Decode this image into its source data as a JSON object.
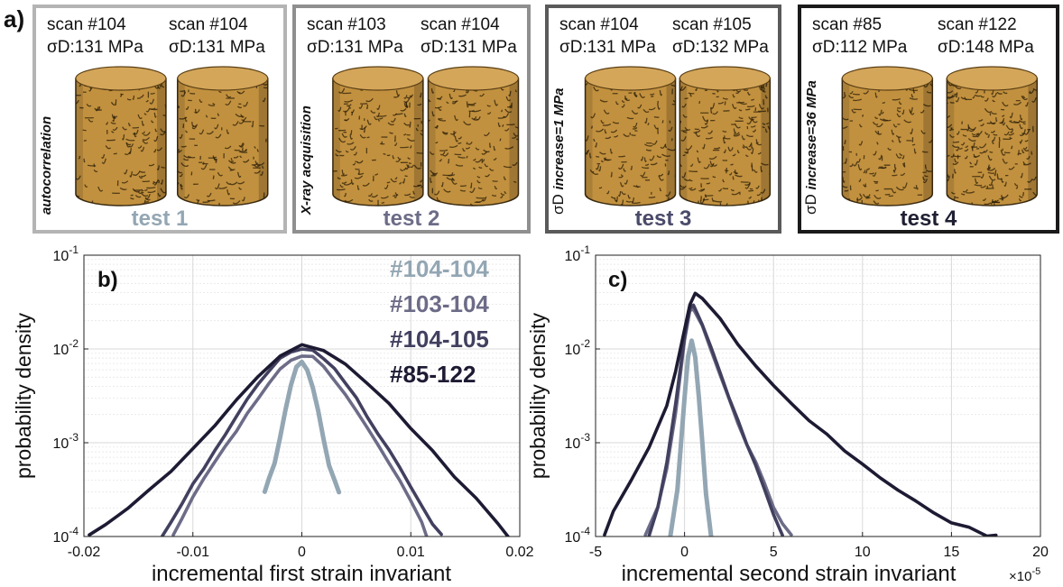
{
  "panel_a": {
    "label": "a)",
    "tests": [
      {
        "title": "test 1",
        "side_label": "autocorrelation",
        "side_prefix": "",
        "scans": [
          {
            "scan": "scan #104",
            "stress": "σD:131 MPa"
          },
          {
            "scan": "scan #104",
            "stress": "σD:131 MPa"
          }
        ],
        "border": "#b4b4b4",
        "title_color": "#93a6b3",
        "density": [
          0.42,
          0.42
        ]
      },
      {
        "title": "test 2",
        "side_label": "X-ray acquisition",
        "side_prefix": "",
        "scans": [
          {
            "scan": "scan #103",
            "stress": "σD:131 MPa"
          },
          {
            "scan": "scan #104",
            "stress": "σD:131 MPa"
          }
        ],
        "border": "#8f8f8f",
        "title_color": "#6c6c88",
        "density": [
          0.55,
          0.45
        ]
      },
      {
        "title": "test 3",
        "side_label": "increase=1 MPa",
        "side_prefix": "σD",
        "scans": [
          {
            "scan": "scan #104",
            "stress": "σD:131 MPa"
          },
          {
            "scan": "scan #105",
            "stress": "σD:132 MPa"
          }
        ],
        "border": "#5a5a5a",
        "title_color": "#4a4a6a",
        "density": [
          0.45,
          0.8
        ]
      },
      {
        "title": "test 4",
        "side_label": "increase=36 MPa",
        "side_prefix": "σD",
        "scans": [
          {
            "scan": "scan #85",
            "stress": "σD:112 MPa"
          },
          {
            "scan": "scan #122",
            "stress": "σD:148 MPa"
          }
        ],
        "border": "#1a1a1a",
        "title_color": "#1f1f33",
        "density": [
          0.45,
          0.9
        ]
      }
    ]
  },
  "colors": {
    "s104_104": "#93a6b3",
    "s103_104": "#6c6c88",
    "s104_105": "#42405f",
    "s85_122": "#1d1b33"
  },
  "chart_data": [
    {
      "type": "line",
      "panel_label": "b)",
      "xlabel": "incremental first strain invariant",
      "ylabel": "probability density",
      "yscale": "log",
      "xlim": [
        -0.02,
        0.02
      ],
      "ylim": [
        0.0001,
        0.1
      ],
      "x_ticks": [
        "-0.02",
        "-0.01",
        "0",
        "0.01",
        "0.02"
      ],
      "x_tick_values": [
        -0.02,
        -0.01,
        0,
        0.01,
        0.02
      ],
      "y_ticks": [
        {
          "base": "10",
          "exp": "-4"
        },
        {
          "base": "10",
          "exp": "-3"
        },
        {
          "base": "10",
          "exp": "-2"
        },
        {
          "base": "10",
          "exp": "-1"
        }
      ],
      "y_tick_values": [
        0.0001,
        0.001,
        0.01,
        0.1
      ],
      "grid": true,
      "legend": "top-right",
      "series": [
        {
          "name": "#104-104",
          "color": "#93a6b3",
          "x": [
            -0.0034,
            -0.003,
            -0.0025,
            -0.002,
            -0.0015,
            -0.001,
            -0.0005,
            0,
            0.0005,
            0.001,
            0.0015,
            0.002,
            0.0025,
            0.003,
            0.0034
          ],
          "y": [
            0.0003,
            0.0004,
            0.0006,
            0.0011,
            0.0022,
            0.004,
            0.0062,
            0.0072,
            0.0062,
            0.004,
            0.0022,
            0.0011,
            0.0006,
            0.0004,
            0.0003
          ]
        },
        {
          "name": "#103-104",
          "color": "#6c6c88",
          "x": [
            -0.0118,
            -0.011,
            -0.01,
            -0.009,
            -0.008,
            -0.007,
            -0.006,
            -0.005,
            -0.004,
            -0.003,
            -0.002,
            -0.001,
            0,
            0.001,
            0.002,
            0.003,
            0.004,
            0.005,
            0.006,
            0.007,
            0.008,
            0.009,
            0.01,
            0.011,
            0.0115
          ],
          "y": [
            0.0001,
            0.00015,
            0.00025,
            0.0004,
            0.0006,
            0.0009,
            0.0014,
            0.0021,
            0.0031,
            0.0045,
            0.0062,
            0.008,
            0.0088,
            0.008,
            0.0062,
            0.0045,
            0.0031,
            0.0021,
            0.0014,
            0.0009,
            0.0006,
            0.0004,
            0.00025,
            0.00015,
            0.0001
          ]
        },
        {
          "name": "#104-105",
          "color": "#42405f",
          "x": [
            -0.0128,
            -0.012,
            -0.011,
            -0.01,
            -0.009,
            -0.008,
            -0.007,
            -0.006,
            -0.005,
            -0.004,
            -0.003,
            -0.002,
            -0.001,
            0,
            0.001,
            0.002,
            0.003,
            0.004,
            0.005,
            0.006,
            0.007,
            0.008,
            0.009,
            0.01,
            0.011,
            0.012,
            0.0128
          ],
          "y": [
            0.0001,
            0.00014,
            0.00022,
            0.00035,
            0.00055,
            0.00085,
            0.0013,
            0.002,
            0.003,
            0.0043,
            0.006,
            0.0078,
            0.0092,
            0.0096,
            0.0092,
            0.0078,
            0.006,
            0.0043,
            0.003,
            0.002,
            0.0013,
            0.00085,
            0.00055,
            0.00035,
            0.00022,
            0.00014,
            0.0001
          ]
        },
        {
          "name": "#85-122",
          "color": "#1d1b33",
          "x": [
            -0.0195,
            -0.018,
            -0.016,
            -0.014,
            -0.012,
            -0.01,
            -0.008,
            -0.006,
            -0.004,
            -0.002,
            0,
            0.002,
            0.004,
            0.006,
            0.008,
            0.01,
            0.012,
            0.014,
            0.016,
            0.018,
            0.019
          ],
          "y": [
            0.0001,
            0.00013,
            0.0002,
            0.00032,
            0.0005,
            0.0009,
            0.0016,
            0.0029,
            0.0052,
            0.0085,
            0.0105,
            0.0095,
            0.0068,
            0.0042,
            0.0025,
            0.0014,
            0.0008,
            0.00045,
            0.00026,
            0.00014,
            0.0001
          ]
        }
      ]
    },
    {
      "type": "line",
      "panel_label": "c)",
      "xlabel": "incremental second strain invariant",
      "x_multiplier": "×10",
      "x_multiplier_exp": "-5",
      "ylabel": "probability density",
      "yscale": "log",
      "xlim": [
        -5,
        20
      ],
      "ylim": [
        0.0001,
        0.1
      ],
      "x_ticks": [
        "-5",
        "0",
        "5",
        "10",
        "15",
        "20"
      ],
      "x_tick_values": [
        -5,
        0,
        5,
        10,
        15,
        20
      ],
      "y_ticks": [
        {
          "base": "10",
          "exp": "-4"
        },
        {
          "base": "10",
          "exp": "-3"
        },
        {
          "base": "10",
          "exp": "-2"
        },
        {
          "base": "10",
          "exp": "-1"
        }
      ],
      "y_tick_values": [
        0.0001,
        0.001,
        0.01,
        0.1
      ],
      "grid": true,
      "series": [
        {
          "name": "#104-104",
          "color": "#93a6b3",
          "x": [
            -0.8,
            -0.4,
            0,
            0.2,
            0.4,
            0.6,
            0.8,
            1.0,
            1.2,
            1.5
          ],
          "y": [
            0.0001,
            0.0003,
            0.003,
            0.008,
            0.012,
            0.008,
            0.003,
            0.001,
            0.0003,
            0.0001
          ]
        },
        {
          "name": "#103-104",
          "color": "#6c6c88",
          "x": [
            -2.2,
            -1.5,
            -1,
            -0.5,
            0,
            0.3,
            0.5,
            1,
            1.5,
            2,
            2.5,
            3,
            3.5,
            4,
            4.5,
            5,
            5.5,
            6
          ],
          "y": [
            0.0001,
            0.0002,
            0.0005,
            0.002,
            0.012,
            0.025,
            0.028,
            0.018,
            0.01,
            0.0055,
            0.003,
            0.0017,
            0.001,
            0.0006,
            0.00035,
            0.0002,
            0.00013,
            0.0001
          ]
        },
        {
          "name": "#104-105",
          "color": "#42405f",
          "x": [
            -2.0,
            -1.5,
            -1,
            -0.5,
            0,
            0.3,
            0.5,
            1,
            1.5,
            2,
            2.5,
            3,
            3.5,
            4,
            4.5,
            5,
            5.5
          ],
          "y": [
            0.0001,
            0.0002,
            0.0006,
            0.0025,
            0.014,
            0.028,
            0.031,
            0.019,
            0.0105,
            0.0057,
            0.0031,
            0.0017,
            0.00095,
            0.00055,
            0.0003,
            0.00017,
            0.0001
          ]
        },
        {
          "name": "#85-122",
          "color": "#1d1b33",
          "x": [
            -4.5,
            -4,
            -3,
            -2,
            -1,
            -0.5,
            0,
            0.3,
            0.6,
            1,
            2,
            3,
            4,
            5,
            6,
            7,
            8,
            9,
            10,
            11,
            12,
            13,
            14,
            15,
            16,
            17,
            17.5
          ],
          "y": [
            0.0001,
            0.00018,
            0.0004,
            0.0009,
            0.0025,
            0.006,
            0.017,
            0.03,
            0.04,
            0.035,
            0.02,
            0.011,
            0.0065,
            0.004,
            0.0025,
            0.0017,
            0.0012,
            0.00085,
            0.0006,
            0.00043,
            0.00032,
            0.00024,
            0.00018,
            0.00014,
            0.00012,
            0.0001,
            0.0001
          ]
        }
      ]
    }
  ]
}
